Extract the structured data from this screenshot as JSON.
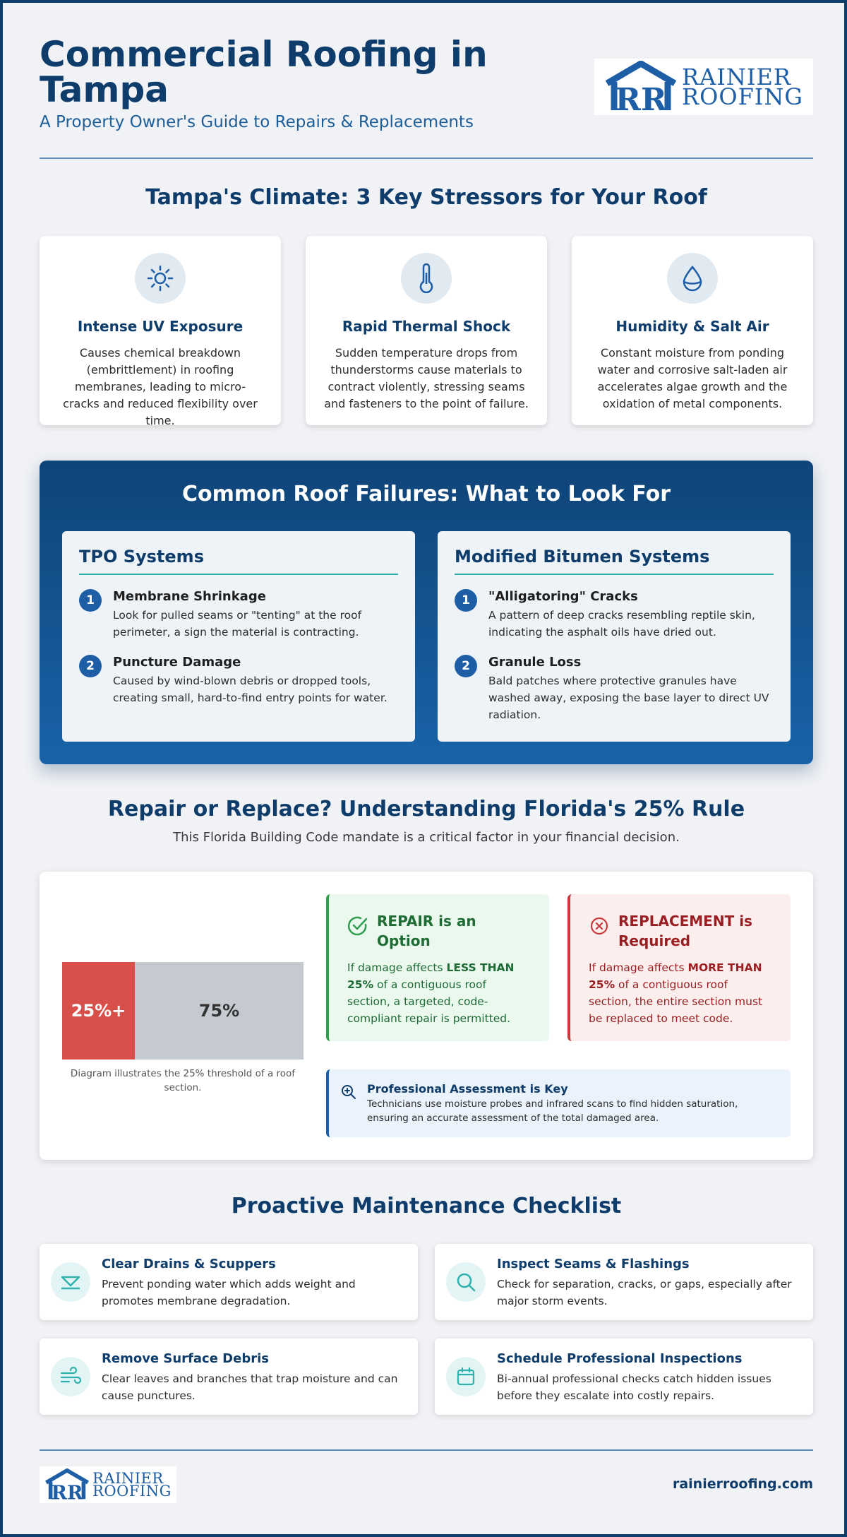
{
  "header": {
    "title": "Commercial Roofing in Tampa",
    "subtitle": "A Property Owner's Guide to Repairs & Replacements",
    "logo_line1": "RAINIER",
    "logo_line2": "ROOFING"
  },
  "climate": {
    "title": "Tampa's Climate: 3 Key Stressors for Your Roof",
    "cards": [
      {
        "icon": "sun-icon",
        "title": "Intense UV Exposure",
        "text": "Causes chemical breakdown (embrittlement) in roofing membranes, leading to micro-cracks and reduced flexibility over time."
      },
      {
        "icon": "thermometer-icon",
        "title": "Rapid Thermal Shock",
        "text": "Sudden temperature drops from thunderstorms cause materials to contract violently, stressing seams and fasteners to the point of failure."
      },
      {
        "icon": "water-drop-icon",
        "title": "Humidity & Salt Air",
        "text": "Constant moisture from ponding water and corrosive salt-laden air accelerates algae growth and the oxidation of metal components."
      }
    ]
  },
  "failures": {
    "title": "Common Roof Failures: What to Look For",
    "panels": [
      {
        "title": "TPO Systems",
        "items": [
          {
            "num": "1",
            "title": "Membrane Shrinkage",
            "text": "Look for pulled seams or \"tenting\" at the roof perimeter, a sign the material is contracting."
          },
          {
            "num": "2",
            "title": "Puncture Damage",
            "text": "Caused by wind-blown debris or dropped tools, creating small, hard-to-find entry points for water."
          }
        ]
      },
      {
        "title": "Modified Bitumen Systems",
        "items": [
          {
            "num": "1",
            "title": "\"Alligatoring\" Cracks",
            "text": "A pattern of deep cracks resembling reptile skin, indicating the asphalt oils have dried out."
          },
          {
            "num": "2",
            "title": "Granule Loss",
            "text": "Bald patches where protective granules have washed away, exposing the base layer to direct UV radiation."
          }
        ]
      }
    ]
  },
  "rule": {
    "title": "Repair or Replace? Understanding Florida's 25% Rule",
    "intro": "This Florida Building Code mandate is a critical factor in your financial decision.",
    "bar_left": "25%+",
    "bar_right": "75%",
    "bar_left_fraction": 0.25,
    "bar_caption": "Diagram illustrates the 25% threshold of a roof section.",
    "repair": {
      "title": "REPAIR is an Option",
      "pre": "If damage affects ",
      "bold": "LESS THAN 25%",
      "post": " of a contiguous roof section, a targeted, code-compliant repair is permitted."
    },
    "replace": {
      "title": "REPLACEMENT is Required",
      "pre": "If damage affects ",
      "bold": "MORE THAN 25%",
      "post": " of a contiguous roof section, the entire section must be replaced to meet code."
    },
    "assessment": {
      "title": "Professional Assessment is Key",
      "text": "Technicians use moisture probes and infrared scans to find hidden saturation, ensuring an accurate assessment of the total damaged area."
    }
  },
  "checklist": {
    "title": "Proactive Maintenance Checklist",
    "items": [
      {
        "icon": "drain-icon",
        "title": "Clear Drains & Scuppers",
        "text": "Prevent ponding water which adds weight and promotes membrane degradation."
      },
      {
        "icon": "magnifier-icon",
        "title": "Inspect Seams & Flashings",
        "text": "Check for separation, cracks, or gaps, especially after major storm events."
      },
      {
        "icon": "wind-icon",
        "title": "Remove Surface Debris",
        "text": "Clear leaves and branches that trap moisture and can cause punctures."
      },
      {
        "icon": "calendar-icon",
        "title": "Schedule Professional Inspections",
        "text": "Bi-annual professional checks catch hidden issues before they escalate into costly repairs."
      }
    ]
  },
  "footer": {
    "url": "rainierroofing.com"
  }
}
